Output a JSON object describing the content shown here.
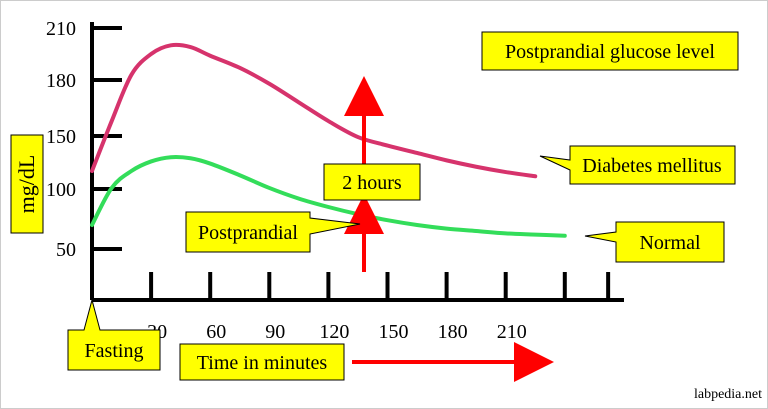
{
  "chart_data": {
    "type": "line",
    "title": "Postprandial glucose level",
    "xlabel": "Time in minutes",
    "ylabel": "mg/dL",
    "xlim": [
      0,
      240
    ],
    "ylim": [
      0,
      210
    ],
    "x_ticks": [
      30,
      60,
      90,
      120,
      150,
      180,
      210
    ],
    "y_ticks": [
      50,
      100,
      150,
      180,
      210
    ],
    "series": [
      {
        "name": "Diabetes mellitus",
        "color": "#d6336c",
        "x": [
          0,
          10,
          20,
          30,
          40,
          50,
          60,
          75,
          90,
          105,
          120,
          135,
          150,
          165,
          180,
          195,
          210,
          225
        ],
        "values": [
          117,
          158,
          183,
          195,
          200,
          199,
          194,
          187,
          178,
          168,
          158,
          149,
          141,
          134,
          127,
          121,
          116,
          112
        ]
      },
      {
        "name": "Normal",
        "color": "#33dd5a",
        "x": [
          0,
          10,
          20,
          30,
          40,
          50,
          60,
          75,
          90,
          105,
          120,
          135,
          150,
          165,
          180,
          195,
          210,
          225,
          240
        ],
        "values": [
          70,
          101,
          117,
          126,
          130,
          129,
          124,
          113,
          101,
          92,
          85,
          79,
          74,
          70,
          67,
          65,
          63,
          62,
          61
        ]
      }
    ],
    "annotations": {
      "fasting": "Fasting",
      "postprandial": "Postprandial",
      "two_hours": "2 hours",
      "credit": "labpedia.net"
    }
  }
}
